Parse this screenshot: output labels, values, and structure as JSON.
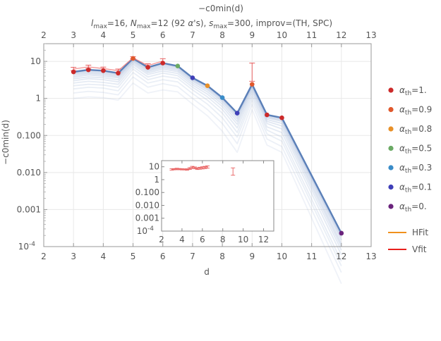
{
  "chart_data": [
    {
      "type": "line",
      "top_label": "−c0min(d)",
      "title_parts": {
        "l": "l",
        "l_sub": "max",
        "l_val": "=16, ",
        "n": "N",
        "n_sub": "max",
        "n_val": "=12 (92 ",
        "alpha": "α",
        "alpha_tail": "'s), ",
        "s": "s",
        "s_sub": "max",
        "s_val": "=300, improv=(TH, SPC)"
      },
      "xlabel": "d",
      "ylabel": "−c0min(d)",
      "xlim": [
        2,
        13
      ],
      "xticks": [
        2,
        3,
        4,
        5,
        6,
        7,
        8,
        9,
        10,
        11,
        12,
        13
      ],
      "yscale": "log",
      "ylim": [
        0.0001,
        30
      ],
      "yticks": [
        {
          "v": 10,
          "label": "10"
        },
        {
          "v": 1,
          "label": "1"
        },
        {
          "v": 0.1,
          "label": "0.100"
        },
        {
          "v": 0.01,
          "label": "0.010"
        },
        {
          "v": 0.001,
          "label": "0.001"
        },
        {
          "v": 0.0001,
          "label": "10",
          "sup": "-4"
        }
      ],
      "main_series": {
        "x": [
          3,
          3.5,
          4,
          4.5,
          5,
          5.5,
          6,
          6.5,
          7,
          7.5,
          8,
          8.5,
          9,
          9.5,
          10,
          12
        ],
        "y": [
          5.2,
          5.9,
          5.6,
          4.8,
          12.0,
          6.9,
          9.0,
          7.5,
          3.6,
          2.2,
          1.05,
          0.4,
          2.4,
          0.36,
          0.3,
          0.00023
        ]
      },
      "markers": [
        {
          "x": 3,
          "y": 5.2,
          "c": "#cc2a2a"
        },
        {
          "x": 3.5,
          "y": 5.9,
          "c": "#cc2a2a"
        },
        {
          "x": 4,
          "y": 5.6,
          "c": "#cc2a2a"
        },
        {
          "x": 4.5,
          "y": 4.8,
          "c": "#cc2a2a"
        },
        {
          "x": 5,
          "y": 12.0,
          "c": "#e0582c"
        },
        {
          "x": 5.5,
          "y": 6.9,
          "c": "#cc2a2a"
        },
        {
          "x": 6,
          "y": 9.0,
          "c": "#cc2a2a"
        },
        {
          "x": 6.5,
          "y": 7.5,
          "c": "#6aaa64"
        },
        {
          "x": 7,
          "y": 3.6,
          "c": "#3f3fb8"
        },
        {
          "x": 7.5,
          "y": 2.2,
          "c": "#e89028"
        },
        {
          "x": 8,
          "y": 1.05,
          "c": "#3a8cc8"
        },
        {
          "x": 8.5,
          "y": 0.4,
          "c": "#3f3fb8"
        },
        {
          "x": 9,
          "y": 2.4,
          "c": "#e0582c"
        },
        {
          "x": 9.5,
          "y": 0.36,
          "c": "#cc2a2a"
        },
        {
          "x": 10,
          "y": 0.3,
          "c": "#cc2a2a"
        },
        {
          "x": 12,
          "y": 0.00023,
          "c": "#6a237c"
        }
      ],
      "vfit": [
        {
          "x": 3,
          "y": 6.2,
          "lo": 5.6,
          "hi": 6.9
        },
        {
          "x": 3.5,
          "y": 7.1,
          "lo": 6.4,
          "hi": 7.9
        },
        {
          "x": 4,
          "y": 6.4,
          "lo": 5.8,
          "hi": 7.0
        },
        {
          "x": 4.5,
          "y": 5.6,
          "lo": 5.1,
          "hi": 6.2
        },
        {
          "x": 5,
          "y": 12.5,
          "lo": 11.7,
          "hi": 13.4
        },
        {
          "x": 5.5,
          "y": 7.7,
          "lo": 7.0,
          "hi": 8.6
        },
        {
          "x": 6,
          "y": 10.2,
          "lo": 9.0,
          "hi": 11.8
        },
        {
          "x": 9,
          "y": 5.0,
          "lo": 2.9,
          "hi": 9.0
        }
      ],
      "faded_paths": [
        [
          4.9,
          5.5,
          5.2,
          4.5,
          11.5,
          6.6,
          8.5,
          7.2,
          3.5,
          2.1,
          1.0,
          0.38,
          2.3,
          0.34,
          0.28,
          0.0002
        ],
        [
          4.6,
          5.1,
          4.8,
          4.2,
          11.0,
          6.2,
          8.0,
          6.8,
          3.3,
          2.0,
          0.95,
          0.35,
          2.2,
          0.32,
          0.26,
          0.00018
        ],
        [
          4.2,
          4.7,
          4.4,
          3.9,
          10.4,
          5.8,
          7.4,
          6.3,
          3.1,
          1.85,
          0.88,
          0.32,
          2.05,
          0.3,
          0.24,
          0.00015
        ],
        [
          3.8,
          4.3,
          4.0,
          3.6,
          9.8,
          5.4,
          6.8,
          5.8,
          2.9,
          1.7,
          0.8,
          0.28,
          1.9,
          0.27,
          0.21,
          0.00012
        ],
        [
          3.4,
          3.8,
          3.6,
          3.2,
          9.0,
          4.9,
          6.2,
          5.3,
          2.6,
          1.5,
          0.7,
          0.24,
          1.7,
          0.24,
          0.18,
          0.0001
        ],
        [
          3.0,
          3.4,
          3.2,
          2.8,
          8.2,
          4.4,
          5.5,
          4.7,
          2.3,
          1.3,
          0.6,
          0.2,
          1.5,
          0.21,
          0.15,
          8e-05
        ],
        [
          2.6,
          2.9,
          2.7,
          2.4,
          7.2,
          3.8,
          4.8,
          4.1,
          2.0,
          1.1,
          0.5,
          0.16,
          1.3,
          0.17,
          0.12,
          6e-05
        ],
        [
          2.2,
          2.4,
          2.3,
          2.0,
          6.2,
          3.2,
          4.0,
          3.5,
          1.7,
          0.9,
          0.4,
          0.12,
          1.1,
          0.14,
          0.09,
          4e-05
        ],
        [
          1.8,
          2.0,
          1.9,
          1.6,
          5.0,
          2.6,
          3.2,
          2.8,
          1.35,
          0.7,
          0.3,
          0.09,
          0.9,
          0.11,
          0.07,
          3e-05
        ],
        [
          1.4,
          1.55,
          1.45,
          1.25,
          3.8,
          2.0,
          2.5,
          2.1,
          1.0,
          0.5,
          0.21,
          0.06,
          0.7,
          0.08,
          0.05,
          2e-05
        ],
        [
          1.0,
          1.1,
          1.05,
          0.9,
          2.6,
          1.4,
          1.7,
          1.5,
          0.7,
          0.34,
          0.13,
          0.035,
          0.5,
          0.055,
          0.035,
          1e-05
        ]
      ],
      "legend": {
        "placement": "right",
        "items": [
          {
            "prefix": "α",
            "sub": "th",
            "value": "=1.",
            "color": "#cc2a2a"
          },
          {
            "prefix": "α",
            "sub": "th",
            "value": "=0.9",
            "color": "#e0582c"
          },
          {
            "prefix": "α",
            "sub": "th",
            "value": "=0.8",
            "color": "#e89028"
          },
          {
            "prefix": "α",
            "sub": "th",
            "value": "=0.5",
            "color": "#6aaa64"
          },
          {
            "prefix": "α",
            "sub": "th",
            "value": "=0.3",
            "color": "#3a8cc8"
          },
          {
            "prefix": "α",
            "sub": "th",
            "value": "=0.1",
            "color": "#3f3fb8"
          },
          {
            "prefix": "α",
            "sub": "th",
            "value": "=0.",
            "color": "#6a237c"
          }
        ],
        "lines": [
          {
            "label": "HFit",
            "color": "#f0901c"
          },
          {
            "label": "Vfit",
            "color": "#e8201c"
          }
        ]
      },
      "grid": true
    },
    {
      "type": "line",
      "role": "inset",
      "xlim": [
        2,
        13
      ],
      "xticks": [
        2,
        4,
        6,
        8,
        10,
        12
      ],
      "yscale": "log",
      "ylim": [
        0.0001,
        30
      ],
      "yticks": [
        {
          "v": 10,
          "label": "10"
        },
        {
          "v": 1,
          "label": "1"
        },
        {
          "v": 0.1,
          "label": "0.100"
        },
        {
          "v": 0.01,
          "label": "0.010"
        },
        {
          "v": 0.001,
          "label": "0.001"
        },
        {
          "v": 0.0001,
          "label": "10",
          "sup": "-4"
        }
      ],
      "series": {
        "x": [
          3,
          3.25,
          3.5,
          3.75,
          4,
          4.25,
          4.5,
          4.75,
          5,
          5.25,
          5.5,
          5.75,
          6,
          6.25,
          6.5,
          9
        ],
        "y": [
          6.3,
          6.5,
          6.8,
          6.6,
          6.4,
          6.3,
          6.2,
          7.4,
          9.0,
          8.4,
          7.2,
          7.8,
          8.4,
          9.0,
          9.8,
          5.2
        ],
        "err": [
          0.8,
          0.7,
          0.9,
          0.7,
          0.7,
          0.6,
          0.8,
          1.2,
          1.8,
          1.3,
          1.1,
          1.4,
          1.6,
          1.8,
          2.0,
          3.0
        ]
      }
    }
  ]
}
